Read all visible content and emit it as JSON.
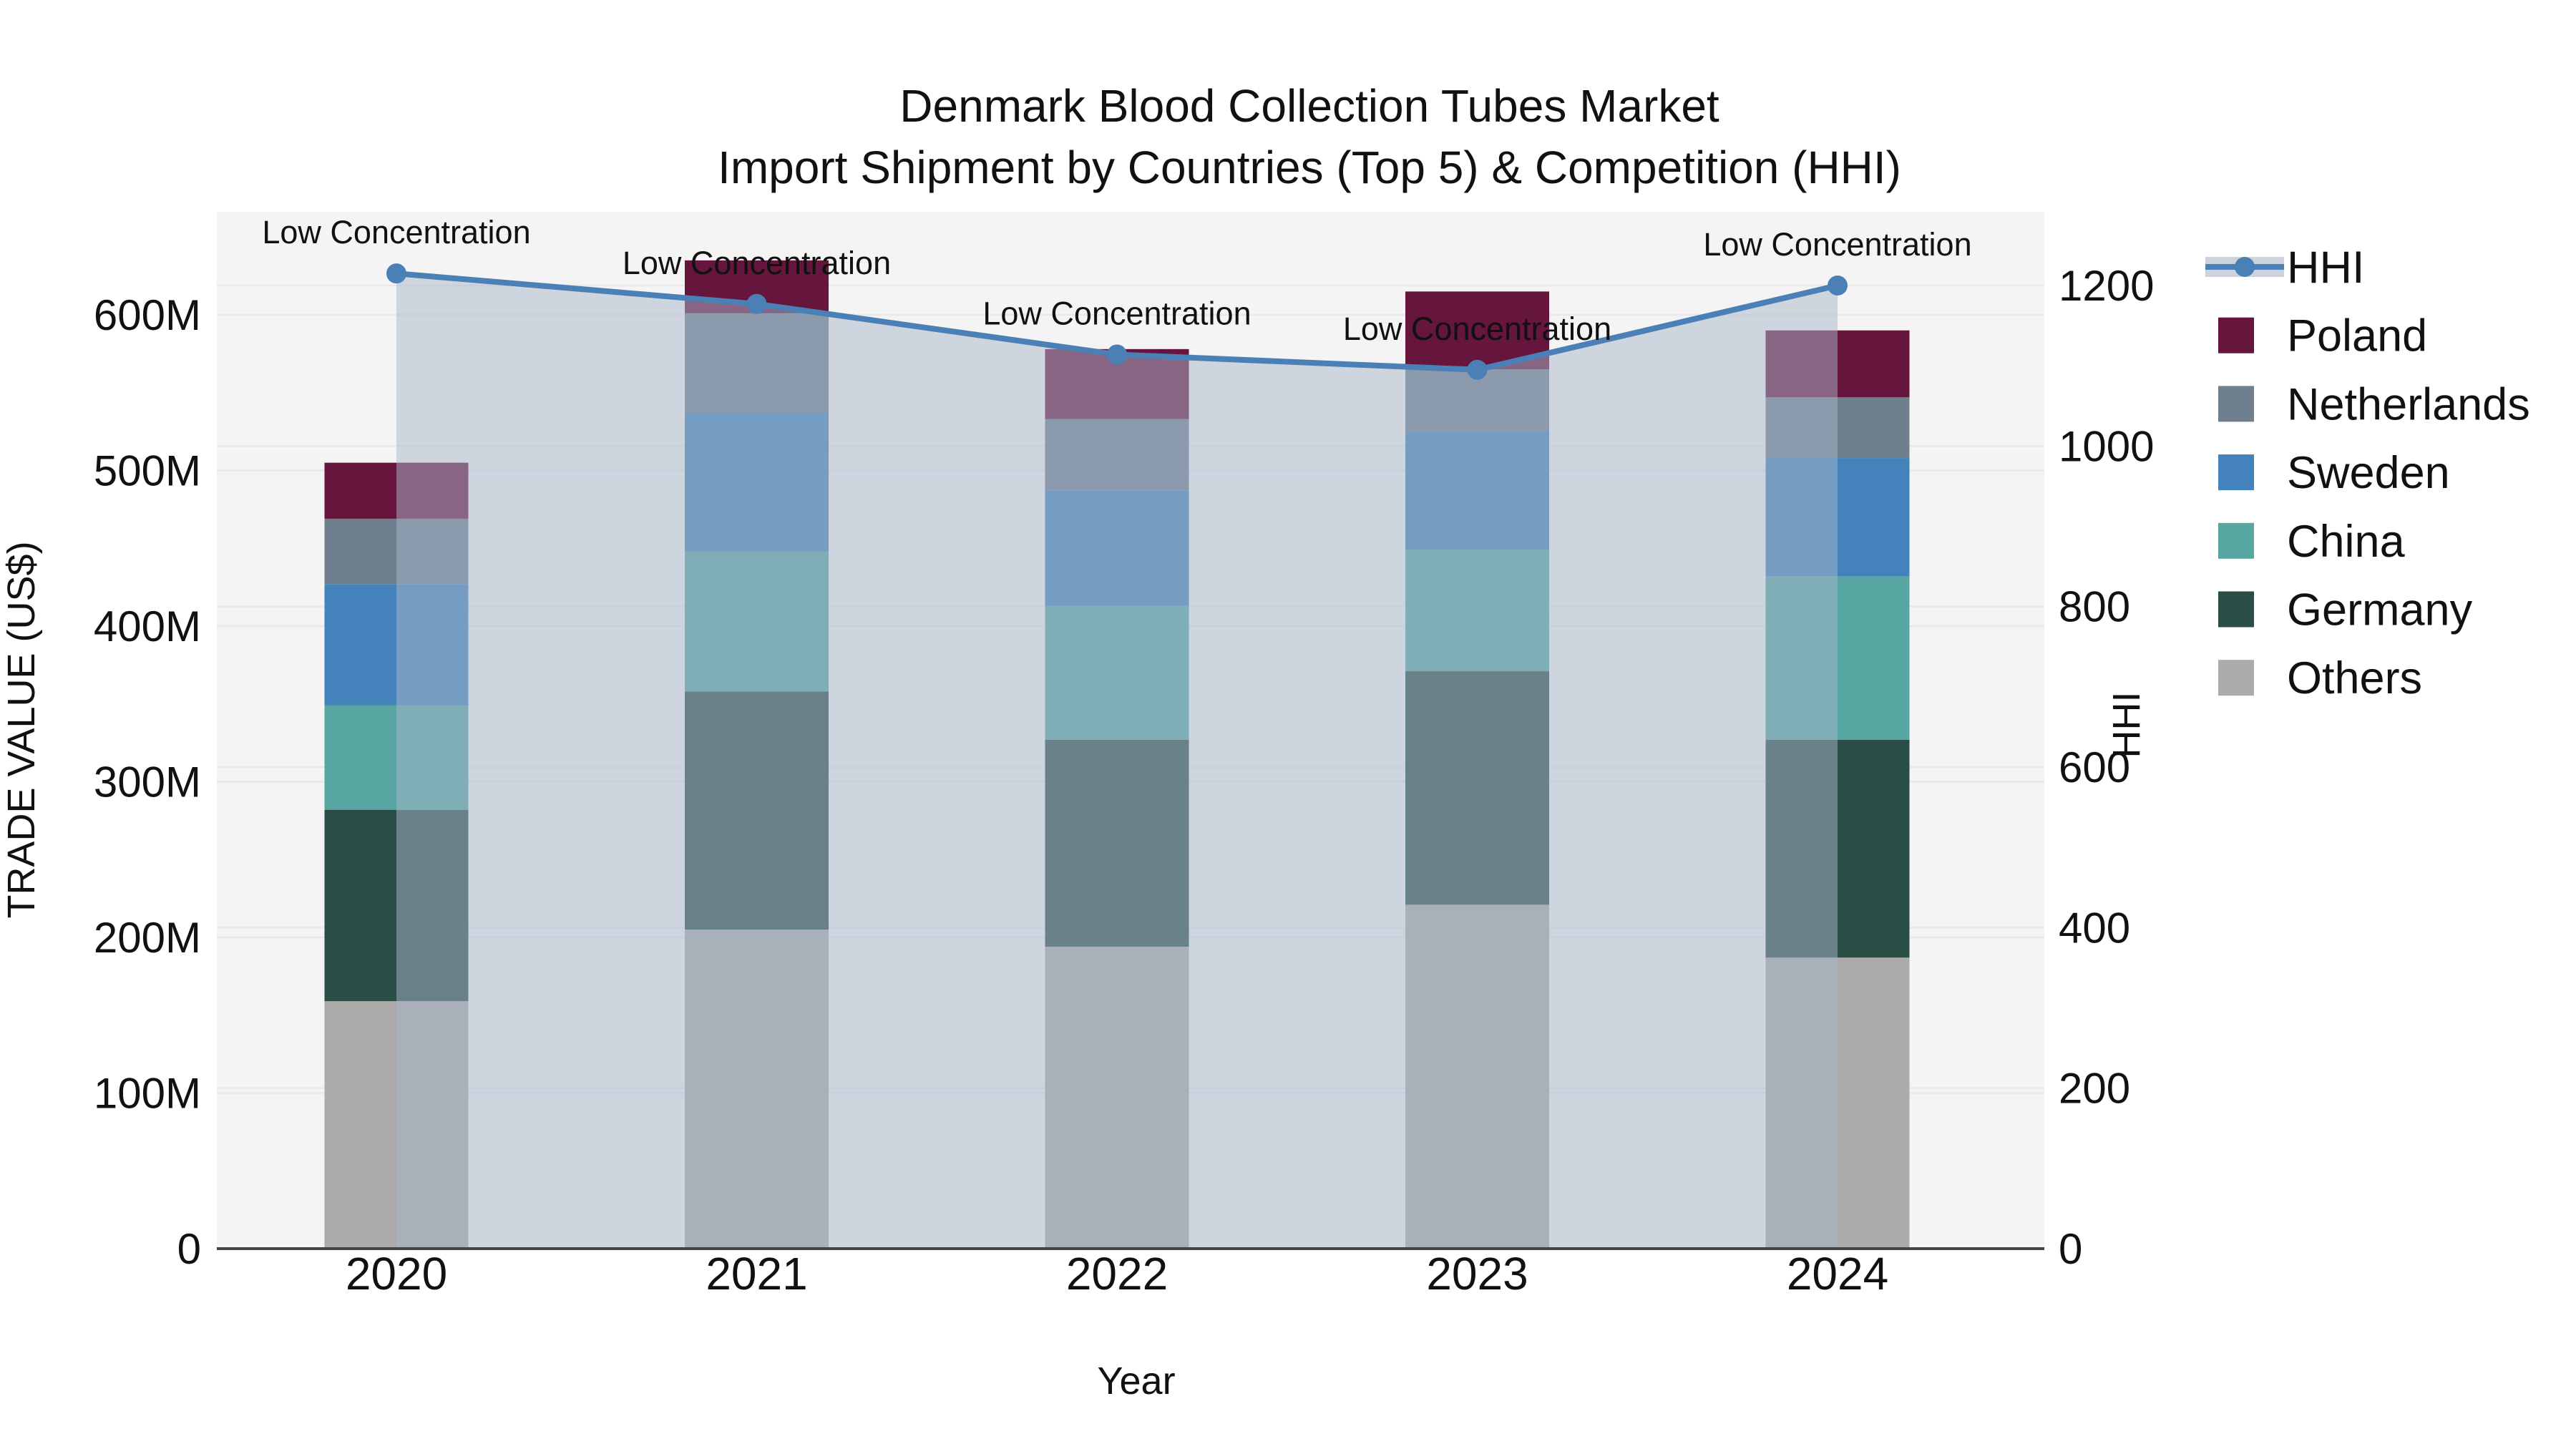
{
  "title": {
    "line1": "Denmark Blood Collection Tubes Market",
    "line2": "Import Shipment by Countries (Top 5) & Competition (HHI)"
  },
  "axes": {
    "y_left": {
      "title": "TRADE VALUE (US$)",
      "tick_labels": [
        "0",
        "100M",
        "200M",
        "300M",
        "400M",
        "500M",
        "600M"
      ],
      "tick_values": [
        0,
        100,
        200,
        300,
        400,
        500,
        600
      ],
      "max_value": 666
    },
    "y_right": {
      "title": "HHI",
      "tick_labels": [
        "0",
        "200",
        "400",
        "600",
        "800",
        "1000",
        "1200"
      ],
      "tick_values": [
        0,
        200,
        400,
        600,
        800,
        1000,
        1200
      ],
      "max_value": 1292
    },
    "x": {
      "title": "Year",
      "tick_labels": [
        "2020",
        "2021",
        "2022",
        "2023",
        "2024"
      ]
    }
  },
  "legend": {
    "items": [
      {
        "label": "HHI",
        "marker": "line-dot",
        "color": "#4a80b5",
        "band_color": "#ccd3de"
      },
      {
        "label": "Poland",
        "marker": "square",
        "color": "#66153c"
      },
      {
        "label": "Netherlands",
        "marker": "square",
        "color": "#6f7f8e"
      },
      {
        "label": "Sweden",
        "marker": "square",
        "color": "#4382ba"
      },
      {
        "label": "China",
        "marker": "square",
        "color": "#57a6a2"
      },
      {
        "label": "Germany",
        "marker": "square",
        "color": "#2a4d46"
      },
      {
        "label": "Others",
        "marker": "square",
        "color": "#adabaa"
      }
    ]
  },
  "annotation_text": "Low Concentration",
  "colors": {
    "plot_background": "#f4f4f5",
    "gridline": "#e8e8ea",
    "axis_spine": "#444444",
    "hhi_line": "#4a80b5",
    "hhi_area_fill": "rgba(168,181,202,0.5)",
    "text": "#111111"
  },
  "chart_data": {
    "type": "bar",
    "subtype": "stacked-bars-with-line-on-secondary-axis",
    "title": "Denmark Blood Collection Tubes Market - Import Shipment by Countries (Top 5) & Competition (HHI)",
    "categories": [
      "2020",
      "2021",
      "2022",
      "2023",
      "2024"
    ],
    "xlabel": "Year",
    "ylabel_left": "TRADE VALUE (US$)",
    "ylabel_right": "HHI",
    "ylim_left_millions": [
      0,
      666
    ],
    "ylim_right": [
      0,
      1292
    ],
    "grid": true,
    "legend_position": "right",
    "bar_value_unit": "USD millions (estimated from axis)",
    "stack_order_bottom_to_top": [
      "Others",
      "Germany",
      "China",
      "Sweden",
      "Netherlands",
      "Poland"
    ],
    "series": [
      {
        "name": "Others",
        "color": "#adabaa",
        "values": [
          159,
          205,
          194,
          221,
          187
        ]
      },
      {
        "name": "Germany",
        "color": "#2a4d46",
        "values": [
          123,
          153,
          133,
          150,
          140
        ]
      },
      {
        "name": "China",
        "color": "#57a6a2",
        "values": [
          67,
          90,
          86,
          78,
          105
        ]
      },
      {
        "name": "Sweden",
        "color": "#4382ba",
        "values": [
          78,
          89,
          74,
          76,
          76
        ]
      },
      {
        "name": "Netherlands",
        "color": "#6f7f8e",
        "values": [
          42,
          64,
          46,
          40,
          39
        ]
      },
      {
        "name": "Poland",
        "color": "#66153c",
        "values": [
          36,
          34,
          45,
          50,
          43
        ]
      }
    ],
    "bar_totals_millions": [
      505,
      635,
      578,
      615,
      590
    ],
    "line_series": {
      "name": "HHI",
      "axis": "right",
      "color": "#4a80b5",
      "area_fill": "rgba(168,181,202,0.5)",
      "values": [
        1215,
        1177,
        1114,
        1095,
        1200
      ],
      "point_annotations": [
        "Low Concentration",
        "Low Concentration",
        "Low Concentration",
        "Low Concentration",
        "Low Concentration"
      ]
    }
  }
}
